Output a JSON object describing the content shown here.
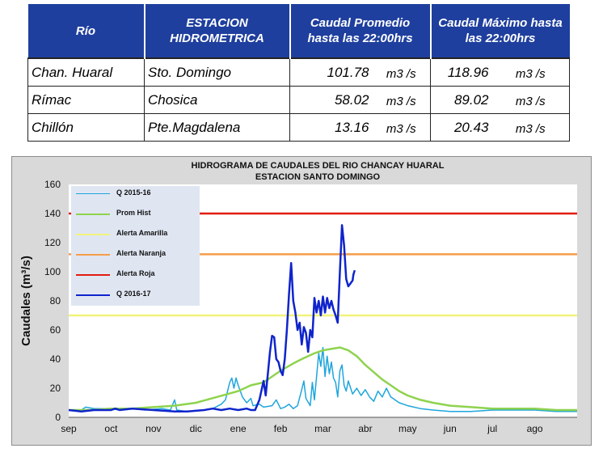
{
  "table": {
    "headers": [
      "Río",
      "ESTACION HIDROMETRICA",
      "Caudal Promedio hasta las 22:00hrs",
      "Caudal Máximo hasta las 22:00hrs"
    ],
    "rows": [
      {
        "river": "Chan. Huaral",
        "station": "Sto. Domingo",
        "avg": "101.78",
        "avg_unit": "m3 /s",
        "max": "118.96",
        "max_unit": "m3 /s"
      },
      {
        "river": "Rímac",
        "station": "Chosica",
        "avg": "58.02",
        "avg_unit": "m3 /s",
        "max": "89.02",
        "max_unit": "m3 /s"
      },
      {
        "river": "Chillón",
        "station": "Pte.Magdalena",
        "avg": "13.16",
        "avg_unit": "m3 /s",
        "max": "20.43",
        "max_unit": "m3 /s"
      }
    ]
  },
  "chart_data": {
    "type": "line",
    "title": "HIDROGRAMA DE CAUDALES  DEL RIO CHANCAY HUARAL",
    "subtitle": "ESTACION SANTO DOMINGO",
    "ylabel": "Caudales (m³/s)",
    "xlabel": "",
    "x_unit": "month index (0 = start of sep)",
    "x_range": [
      0,
      12
    ],
    "ylim": [
      0,
      160
    ],
    "yticks": [
      0,
      20,
      40,
      60,
      80,
      100,
      120,
      140,
      160
    ],
    "categories": [
      "sep",
      "oct",
      "nov",
      "dic",
      "ene",
      "feb",
      "mar",
      "abr",
      "may",
      "jun",
      "jul",
      "ago"
    ],
    "grid": false,
    "legend_position": "top-left inside plot",
    "series": [
      {
        "name": "Q 2015-16",
        "color": "#1fa6dc",
        "width": 1.5,
        "points": [
          [
            0,
            5
          ],
          [
            0.3,
            5
          ],
          [
            0.4,
            7
          ],
          [
            0.6,
            6
          ],
          [
            1.0,
            6
          ],
          [
            1.2,
            5
          ],
          [
            1.5,
            6
          ],
          [
            1.8,
            5
          ],
          [
            2.2,
            6
          ],
          [
            2.4,
            5
          ],
          [
            2.5,
            12
          ],
          [
            2.55,
            5
          ],
          [
            2.8,
            4
          ],
          [
            3.2,
            5
          ],
          [
            3.4,
            6
          ],
          [
            3.6,
            9
          ],
          [
            3.7,
            12
          ],
          [
            3.8,
            24
          ],
          [
            3.85,
            27
          ],
          [
            3.9,
            20
          ],
          [
            3.95,
            27
          ],
          [
            4.0,
            22
          ],
          [
            4.1,
            14
          ],
          [
            4.2,
            10
          ],
          [
            4.3,
            13
          ],
          [
            4.35,
            8
          ],
          [
            4.5,
            9
          ],
          [
            4.6,
            7
          ],
          [
            4.8,
            8
          ],
          [
            4.9,
            12
          ],
          [
            5.0,
            6
          ],
          [
            5.1,
            7
          ],
          [
            5.2,
            9
          ],
          [
            5.3,
            6
          ],
          [
            5.4,
            8
          ],
          [
            5.5,
            19
          ],
          [
            5.55,
            25
          ],
          [
            5.6,
            13
          ],
          [
            5.7,
            8
          ],
          [
            5.75,
            24
          ],
          [
            5.8,
            12
          ],
          [
            5.9,
            44
          ],
          [
            5.95,
            35
          ],
          [
            6.0,
            48
          ],
          [
            6.05,
            28
          ],
          [
            6.1,
            42
          ],
          [
            6.15,
            30
          ],
          [
            6.2,
            38
          ],
          [
            6.25,
            27
          ],
          [
            6.3,
            24
          ],
          [
            6.35,
            14
          ],
          [
            6.4,
            32
          ],
          [
            6.45,
            36
          ],
          [
            6.5,
            22
          ],
          [
            6.55,
            18
          ],
          [
            6.6,
            25
          ],
          [
            6.7,
            16
          ],
          [
            6.8,
            20
          ],
          [
            6.9,
            15
          ],
          [
            7.0,
            19
          ],
          [
            7.1,
            14
          ],
          [
            7.2,
            11
          ],
          [
            7.3,
            18
          ],
          [
            7.4,
            14
          ],
          [
            7.5,
            20
          ],
          [
            7.6,
            14
          ],
          [
            7.8,
            10
          ],
          [
            8.0,
            8
          ],
          [
            8.3,
            6
          ],
          [
            8.6,
            5
          ],
          [
            9.0,
            4
          ],
          [
            9.5,
            4
          ],
          [
            10.0,
            5
          ],
          [
            10.5,
            5
          ],
          [
            11.0,
            5
          ],
          [
            11.5,
            4
          ],
          [
            12,
            4
          ]
        ]
      },
      {
        "name": "Prom Hist",
        "color": "#8ed34e",
        "width": 2.5,
        "points": [
          [
            0,
            5
          ],
          [
            0.5,
            5
          ],
          [
            1.0,
            6
          ],
          [
            1.5,
            6
          ],
          [
            2.0,
            7
          ],
          [
            2.5,
            8
          ],
          [
            3.0,
            10
          ],
          [
            3.5,
            14
          ],
          [
            4.0,
            18
          ],
          [
            4.3,
            22
          ],
          [
            4.6,
            24
          ],
          [
            4.8,
            28
          ],
          [
            5.0,
            32
          ],
          [
            5.3,
            37
          ],
          [
            5.5,
            40
          ],
          [
            5.8,
            44
          ],
          [
            6.0,
            46
          ],
          [
            6.2,
            47
          ],
          [
            6.4,
            48
          ],
          [
            6.6,
            46
          ],
          [
            6.8,
            42
          ],
          [
            7.0,
            36
          ],
          [
            7.2,
            31
          ],
          [
            7.4,
            26
          ],
          [
            7.6,
            22
          ],
          [
            7.8,
            18
          ],
          [
            8.0,
            15
          ],
          [
            8.3,
            12
          ],
          [
            8.6,
            10
          ],
          [
            9.0,
            8
          ],
          [
            9.5,
            7
          ],
          [
            10.0,
            6
          ],
          [
            10.5,
            6
          ],
          [
            11.0,
            6
          ],
          [
            11.5,
            5
          ],
          [
            12,
            5
          ]
        ]
      },
      {
        "name": "Alerta Amarilla",
        "color": "#f2f27a",
        "width": 2.5,
        "points": [
          [
            0,
            70
          ],
          [
            12,
            70
          ]
        ]
      },
      {
        "name": "Alerta Naranja",
        "color": "#f59c49",
        "width": 2.5,
        "points": [
          [
            0,
            112
          ],
          [
            12,
            112
          ]
        ]
      },
      {
        "name": "Alerta Roja",
        "color": "#e31b10",
        "width": 2.5,
        "points": [
          [
            0,
            140
          ],
          [
            12,
            140
          ]
        ]
      },
      {
        "name": "Q 2016-17",
        "color": "#0f24cc",
        "width": 2.5,
        "points": [
          [
            0,
            5
          ],
          [
            0.3,
            4
          ],
          [
            0.6,
            5
          ],
          [
            1.0,
            5
          ],
          [
            1.1,
            6
          ],
          [
            1.2,
            5
          ],
          [
            1.5,
            6
          ],
          [
            2.0,
            5
          ],
          [
            2.5,
            4
          ],
          [
            2.8,
            4
          ],
          [
            3.2,
            5
          ],
          [
            3.4,
            6
          ],
          [
            3.6,
            5
          ],
          [
            3.8,
            6
          ],
          [
            4.0,
            5
          ],
          [
            4.2,
            6
          ],
          [
            4.3,
            5
          ],
          [
            4.4,
            5
          ],
          [
            4.5,
            12
          ],
          [
            4.6,
            25
          ],
          [
            4.65,
            15
          ],
          [
            4.7,
            30
          ],
          [
            4.75,
            45
          ],
          [
            4.8,
            56
          ],
          [
            4.85,
            55
          ],
          [
            4.9,
            40
          ],
          [
            4.95,
            38
          ],
          [
            5.0,
            32
          ],
          [
            5.05,
            29
          ],
          [
            5.1,
            40
          ],
          [
            5.15,
            60
          ],
          [
            5.2,
            85
          ],
          [
            5.25,
            106
          ],
          [
            5.3,
            80
          ],
          [
            5.35,
            72
          ],
          [
            5.4,
            60
          ],
          [
            5.45,
            65
          ],
          [
            5.5,
            50
          ],
          [
            5.55,
            62
          ],
          [
            5.6,
            58
          ],
          [
            5.65,
            45
          ],
          [
            5.7,
            60
          ],
          [
            5.75,
            55
          ],
          [
            5.8,
            82
          ],
          [
            5.85,
            72
          ],
          [
            5.9,
            80
          ],
          [
            5.95,
            70
          ],
          [
            6.0,
            83
          ],
          [
            6.05,
            72
          ],
          [
            6.1,
            82
          ],
          [
            6.15,
            75
          ],
          [
            6.2,
            80
          ],
          [
            6.25,
            74
          ],
          [
            6.3,
            70
          ],
          [
            6.35,
            65
          ],
          [
            6.4,
            100
          ],
          [
            6.45,
            132
          ],
          [
            6.5,
            118
          ],
          [
            6.55,
            95
          ],
          [
            6.6,
            90
          ],
          [
            6.65,
            92
          ],
          [
            6.7,
            94
          ],
          [
            6.72,
            98
          ],
          [
            6.75,
            101
          ]
        ]
      }
    ]
  }
}
